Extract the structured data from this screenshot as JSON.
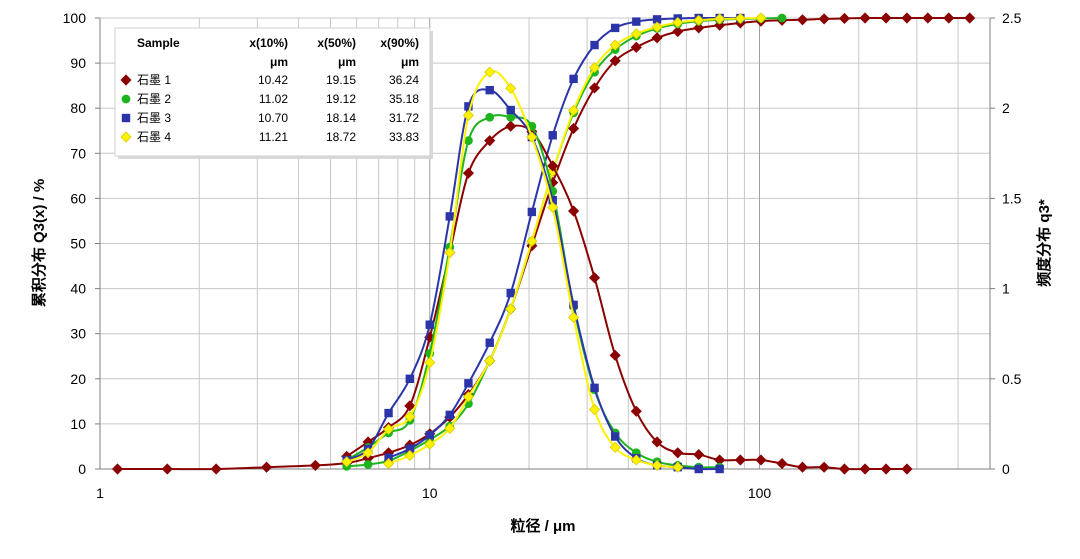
{
  "chart_data": {
    "type": "line",
    "x_scale": "log",
    "xlim": [
      1,
      500
    ],
    "ylim": [
      0,
      100
    ],
    "y2lim": [
      0,
      2.5
    ],
    "grid": true,
    "xlabel": "粒径 / μm",
    "ylabel": "累积分布 Q3(x) / %",
    "y2label": "频度分布 q3*",
    "x_ticks": [
      "1",
      "10",
      "100"
    ],
    "y_ticks": [
      "0",
      "10",
      "20",
      "30",
      "40",
      "50",
      "60",
      "70",
      "80",
      "90",
      "100"
    ],
    "y2_ticks": [
      "0",
      "0.5",
      "1",
      "1.5",
      "2",
      "2.5"
    ],
    "legend": {
      "placement": "top-left",
      "headers": [
        "Sample",
        "x(10%)",
        "x(50%)",
        "x(90%)"
      ],
      "units": [
        "",
        "μm",
        "μm",
        "μm"
      ],
      "rows": [
        {
          "name": "石墨 1",
          "x10": "10.42",
          "x50": "19.15",
          "x90": "36.24",
          "marker": "diamond",
          "color": "#8B0000"
        },
        {
          "name": "石墨 2",
          "x10": "11.02",
          "x50": "19.12",
          "x90": "35.18",
          "marker": "circle",
          "color": "#1EB41E"
        },
        {
          "name": "石墨 3",
          "x10": "10.70",
          "x50": "18.14",
          "x90": "31.72",
          "marker": "square",
          "color": "#2B35A8"
        },
        {
          "name": "石墨 4",
          "x10": "11.21",
          "x50": "18.72",
          "x90": "33.83",
          "marker": "diamond",
          "color": "#FFF200"
        }
      ]
    },
    "series": [
      {
        "name": "石墨 1",
        "axis": "left",
        "marker": "diamond",
        "color": "#8B0000",
        "points": [
          [
            1.13,
            0
          ],
          [
            1.6,
            0
          ],
          [
            2.25,
            0
          ],
          [
            3.2,
            0.4
          ],
          [
            4.5,
            0.8
          ],
          [
            5.6,
            1.3
          ],
          [
            6.5,
            2.4
          ],
          [
            7.5,
            3.6
          ],
          [
            8.7,
            5.3
          ],
          [
            10,
            7.8
          ],
          [
            11.5,
            11.5
          ],
          [
            13.1,
            16.5
          ],
          [
            15.2,
            24
          ],
          [
            17.6,
            35.5
          ],
          [
            20.4,
            49.5
          ],
          [
            23.6,
            63.5
          ],
          [
            27.3,
            75.5
          ],
          [
            31.6,
            84.5
          ],
          [
            36.5,
            90.5
          ],
          [
            42.3,
            93.5
          ],
          [
            48.9,
            95.6
          ],
          [
            56.5,
            97
          ],
          [
            65.4,
            97.8
          ],
          [
            75.7,
            98.4
          ],
          [
            87.5,
            98.9
          ],
          [
            101,
            99.3
          ],
          [
            117,
            99.5
          ],
          [
            135,
            99.6
          ],
          [
            157,
            99.8
          ],
          [
            181,
            99.9
          ],
          [
            209,
            100
          ],
          [
            242,
            100
          ],
          [
            280,
            100
          ],
          [
            324,
            100
          ],
          [
            375,
            100
          ],
          [
            434,
            100
          ]
        ]
      },
      {
        "name": "石墨 2",
        "axis": "left",
        "marker": "circle",
        "color": "#1EB41E",
        "points": [
          [
            5.6,
            0.6
          ],
          [
            6.5,
            1
          ],
          [
            7.5,
            1.8
          ],
          [
            8.7,
            4
          ],
          [
            10,
            6.5
          ],
          [
            11.5,
            9.5
          ],
          [
            13.1,
            14.5
          ],
          [
            15.2,
            24
          ],
          [
            17.6,
            35.5
          ],
          [
            20.4,
            50.5
          ],
          [
            23.6,
            66
          ],
          [
            27.3,
            79
          ],
          [
            31.6,
            88
          ],
          [
            36.5,
            93
          ],
          [
            42.3,
            96
          ],
          [
            48.9,
            97.7
          ],
          [
            56.5,
            98.7
          ],
          [
            65.4,
            99.3
          ],
          [
            75.7,
            99.6
          ],
          [
            87.5,
            99.8
          ],
          [
            101,
            99.9
          ],
          [
            117,
            100
          ]
        ]
      },
      {
        "name": "石墨 3",
        "axis": "left",
        "marker": "square",
        "color": "#2B35A8",
        "points": [
          [
            7.5,
            2.5
          ],
          [
            8.7,
            4.5
          ],
          [
            10,
            7.5
          ],
          [
            11.5,
            12
          ],
          [
            13.1,
            19
          ],
          [
            15.2,
            28
          ],
          [
            17.6,
            39
          ],
          [
            20.4,
            57
          ],
          [
            23.6,
            74
          ],
          [
            27.3,
            86.5
          ],
          [
            31.6,
            94
          ],
          [
            36.5,
            97.8
          ],
          [
            42.3,
            99.2
          ],
          [
            48.9,
            99.7
          ],
          [
            56.5,
            99.9
          ],
          [
            65.4,
            100
          ],
          [
            75.7,
            100
          ],
          [
            87.5,
            100
          ]
        ]
      },
      {
        "name": "石墨 4",
        "axis": "left",
        "marker": "diamond",
        "color": "#FFF200",
        "points": [
          [
            7.5,
            1.2
          ],
          [
            8.7,
            3
          ],
          [
            10,
            5.5
          ],
          [
            11.5,
            9
          ],
          [
            13.1,
            16
          ],
          [
            15.2,
            24
          ],
          [
            17.6,
            35.5
          ],
          [
            20.4,
            50.5
          ],
          [
            23.6,
            66
          ],
          [
            27.3,
            79.5
          ],
          [
            31.6,
            89
          ],
          [
            36.5,
            94
          ],
          [
            42.3,
            96.5
          ],
          [
            48.9,
            98
          ],
          [
            56.5,
            99
          ],
          [
            65.4,
            99.5
          ],
          [
            75.7,
            99.8
          ],
          [
            87.5,
            99.9
          ],
          [
            101,
            100
          ]
        ]
      },
      {
        "name": "石墨 1",
        "axis": "right",
        "marker": "diamond",
        "color": "#8B0000",
        "points": [
          [
            5.6,
            0.07
          ],
          [
            6.5,
            0.15
          ],
          [
            7.5,
            0.23
          ],
          [
            8.7,
            0.35
          ],
          [
            10,
            0.73
          ],
          [
            11.5,
            1.2
          ],
          [
            13.1,
            1.64
          ],
          [
            15.2,
            1.82
          ],
          [
            17.6,
            1.9
          ],
          [
            20.4,
            1.87
          ],
          [
            23.6,
            1.68
          ],
          [
            27.3,
            1.43
          ],
          [
            31.6,
            1.06
          ],
          [
            36.5,
            0.63
          ],
          [
            42.3,
            0.32
          ],
          [
            48.9,
            0.15
          ],
          [
            56.5,
            0.09
          ],
          [
            65.4,
            0.08
          ],
          [
            75.7,
            0.05
          ],
          [
            87.5,
            0.05
          ],
          [
            101,
            0.05
          ],
          [
            117,
            0.03
          ],
          [
            135,
            0.01
          ],
          [
            157,
            0.01
          ],
          [
            181,
            0
          ],
          [
            209,
            0
          ],
          [
            242,
            0
          ],
          [
            280,
            0
          ]
        ]
      },
      {
        "name": "石墨 2",
        "axis": "right",
        "marker": "circle",
        "color": "#1EB41E",
        "points": [
          [
            5.6,
            0.05
          ],
          [
            6.5,
            0.12
          ],
          [
            7.5,
            0.2
          ],
          [
            8.7,
            0.27
          ],
          [
            10,
            0.64
          ],
          [
            11.5,
            1.23
          ],
          [
            13.1,
            1.82
          ],
          [
            15.2,
            1.95
          ],
          [
            17.6,
            1.95
          ],
          [
            20.4,
            1.9
          ],
          [
            23.6,
            1.54
          ],
          [
            27.3,
            0.9
          ],
          [
            31.6,
            0.44
          ],
          [
            36.5,
            0.2
          ],
          [
            42.3,
            0.09
          ],
          [
            48.9,
            0.04
          ],
          [
            56.5,
            0.02
          ],
          [
            65.4,
            0.01
          ],
          [
            75.7,
            0.01
          ]
        ]
      },
      {
        "name": "石墨 3",
        "axis": "right",
        "marker": "square",
        "color": "#2B35A8",
        "points": [
          [
            5.6,
            0.05
          ],
          [
            6.5,
            0.11
          ],
          [
            7.5,
            0.31
          ],
          [
            8.7,
            0.5
          ],
          [
            10,
            0.8
          ],
          [
            11.5,
            1.4
          ],
          [
            13.1,
            2.01
          ],
          [
            15.2,
            2.1
          ],
          [
            17.6,
            1.99
          ],
          [
            20.4,
            1.84
          ],
          [
            23.6,
            1.49
          ],
          [
            27.3,
            0.91
          ],
          [
            31.6,
            0.45
          ],
          [
            36.5,
            0.18
          ],
          [
            42.3,
            0.06
          ],
          [
            48.9,
            0.02
          ],
          [
            56.5,
            0.01
          ],
          [
            65.4,
            0
          ],
          [
            75.7,
            0
          ]
        ]
      },
      {
        "name": "石墨 4",
        "axis": "right",
        "marker": "diamond",
        "color": "#FFF200",
        "points": [
          [
            5.6,
            0.04
          ],
          [
            6.5,
            0.09
          ],
          [
            7.5,
            0.22
          ],
          [
            8.7,
            0.29
          ],
          [
            10,
            0.59
          ],
          [
            11.5,
            1.2
          ],
          [
            13.1,
            1.96
          ],
          [
            15.2,
            2.2
          ],
          [
            17.6,
            2.11
          ],
          [
            20.4,
            1.84
          ],
          [
            23.6,
            1.45
          ],
          [
            27.3,
            0.84
          ],
          [
            31.6,
            0.33
          ],
          [
            36.5,
            0.12
          ],
          [
            42.3,
            0.05
          ],
          [
            48.9,
            0.02
          ],
          [
            56.5,
            0.01
          ]
        ]
      }
    ]
  }
}
